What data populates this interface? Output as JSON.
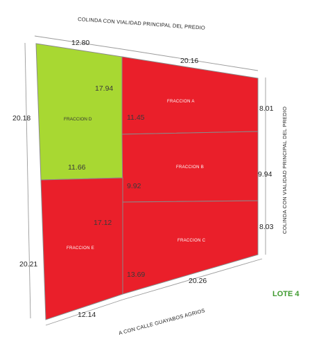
{
  "colors": {
    "sold": "#ea1f2a",
    "available": "#a8d832",
    "lot_label": "#3f9a2f",
    "lines": "#8a8a8a"
  },
  "sides": {
    "top": "COLINDA CON VIALIDAD PRINCIPAL DEL PREDIO",
    "right": "COLINDA CON VIALIDAD PRINCIPAL DEL PREDIO",
    "bottom": "A CON CALLE GUAYABOS AGRIOS"
  },
  "lot_label": "LOTE 4",
  "fractions": {
    "d": "FRACCION D",
    "a": "FRACCION A",
    "b": "FRACCION B",
    "c": "FRACCION C",
    "e": "FRACCION E"
  },
  "dimensions": {
    "top_left": "12.80",
    "top_right": "20.16",
    "left_upper": "20.18",
    "left_lower": "20.21",
    "right_a": "8.01",
    "right_b": "9.94",
    "right_c": "8.03",
    "bottom_left": "12.14",
    "bottom_right": "20.26",
    "d_inner_right": "17.94",
    "d_inner_bottom": "11.66",
    "a_inner_left": "11.45",
    "b_inner_left": "9.92",
    "e_inner_top": "17.12",
    "c_inner_left": "13.69"
  }
}
